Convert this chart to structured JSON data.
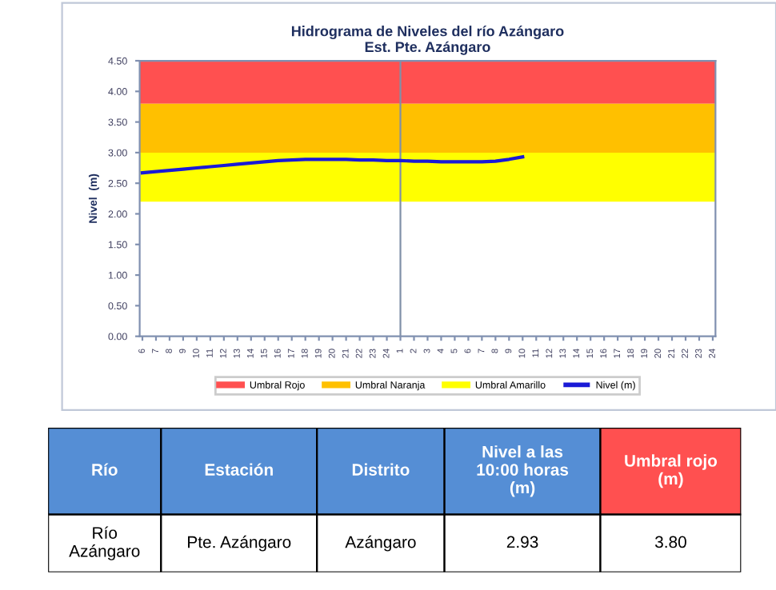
{
  "chart_data": [
    {
      "type": "line",
      "title": "Hidrograma de Niveles del río Azángaro\nEst. Pte. Azángaro",
      "ylabel": "Nivel  (m)",
      "categories": [
        "6",
        "7",
        "8",
        "9",
        "10",
        "11",
        "12",
        "13",
        "14",
        "15",
        "16",
        "17",
        "18",
        "19",
        "20",
        "21",
        "22",
        "23",
        "24",
        "1",
        "2",
        "3",
        "4",
        "5",
        "6",
        "7",
        "8",
        "9",
        "10",
        "11",
        "12",
        "13",
        "14",
        "15",
        "16",
        "17",
        "18",
        "19",
        "20",
        "21",
        "22",
        "23",
        "24"
      ],
      "series": [
        {
          "name": "Nivel (m)",
          "color": "#1a1ad6",
          "values": [
            2.67,
            2.69,
            2.71,
            2.73,
            2.75,
            2.77,
            2.79,
            2.81,
            2.83,
            2.85,
            2.87,
            2.88,
            2.89,
            2.89,
            2.89,
            2.89,
            2.88,
            2.88,
            2.87,
            2.87,
            2.86,
            2.86,
            2.85,
            2.85,
            2.85,
            2.85,
            2.86,
            2.89,
            2.93,
            null,
            null,
            null,
            null,
            null,
            null,
            null,
            null,
            null,
            null,
            null,
            null,
            null,
            null
          ]
        }
      ],
      "ylim": [
        0,
        4.5
      ],
      "yticks": [
        {
          "value": 0,
          "label": "0.00"
        },
        {
          "value": 0.5,
          "label": "0.50"
        },
        {
          "value": 1,
          "label": "1.00"
        },
        {
          "value": 1.5,
          "label": "1.50"
        },
        {
          "value": 2,
          "label": "2.00"
        },
        {
          "value": 2.5,
          "label": "2.50"
        },
        {
          "value": 3,
          "label": "3.00"
        },
        {
          "value": 3.5,
          "label": "3.50"
        },
        {
          "value": 4,
          "label": "4.00"
        },
        {
          "value": 4.5,
          "label": "4.50"
        }
      ],
      "bands": [
        {
          "axis": "y",
          "from": 3.8,
          "to": 4.5,
          "label": "Umbral Rojo",
          "color": "#ff5050"
        },
        {
          "axis": "y",
          "from": 3.0,
          "to": 3.8,
          "label": "Umbral Naranja",
          "color": "#ffc000"
        },
        {
          "axis": "y",
          "from": 2.2,
          "to": 3.0,
          "label": "Umbral Amarillo",
          "color": "#ffff00"
        }
      ],
      "ref_lines": [
        {
          "axis": "x",
          "value": "1",
          "color": "#8090a8"
        }
      ],
      "grid": false,
      "legend": "bottom",
      "marker": "none",
      "line_style": "solid"
    },
    {
      "type": "other",
      "annotations": [
        "Río",
        "Estación",
        "Distrito",
        "Nivel a las\n10:00 horas\n(m)",
        "Umbral rojo\n(m)",
        "Río\nAzángaro",
        "Pte. Azángaro",
        "Azángaro",
        "2.93",
        "3.80"
      ],
      "colors": [
        "#558ed5",
        "#558ed5",
        "#558ed5",
        "#558ed5",
        "#ff5050"
      ]
    }
  ]
}
